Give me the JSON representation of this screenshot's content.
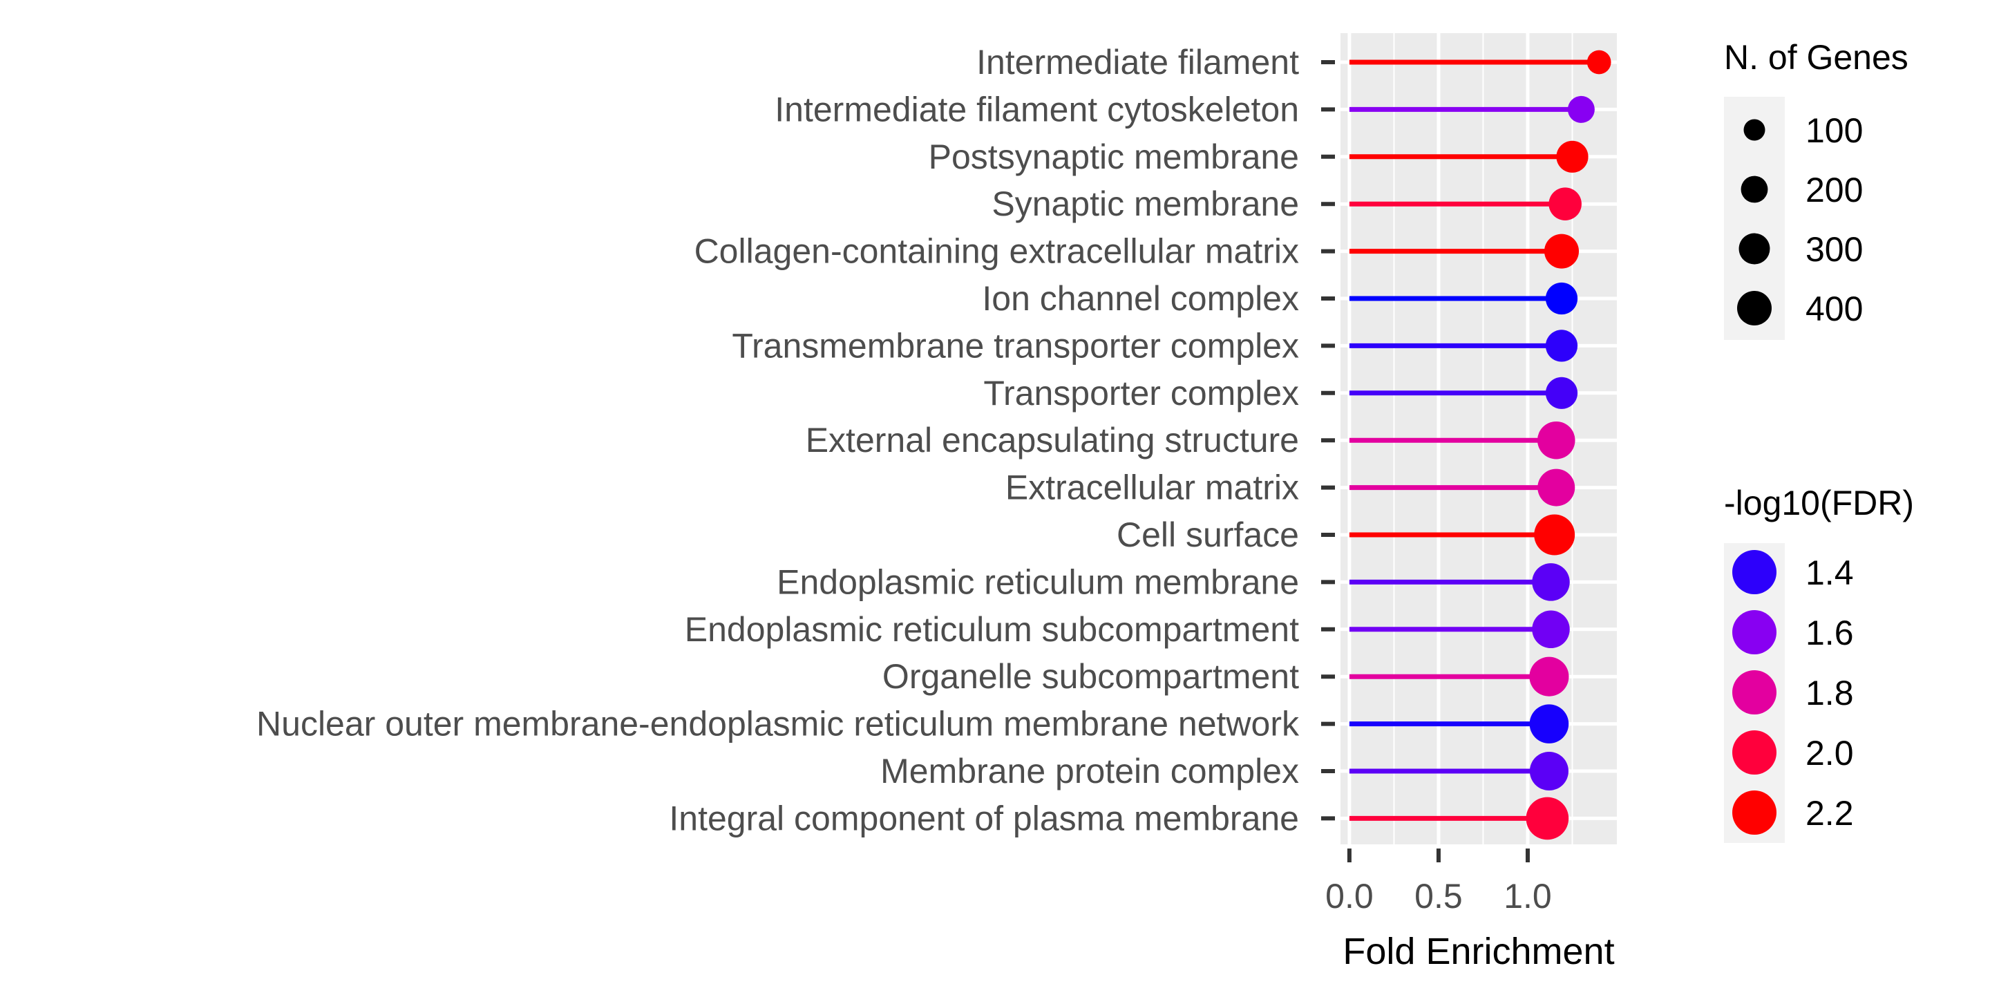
{
  "chart_data": {
    "type": "lollipop",
    "xlabel": "Fold Enrichment",
    "ylabel": "",
    "xlim": [
      -0.05,
      1.5
    ],
    "xticks": [
      0.0,
      0.5,
      1.0
    ],
    "xtick_labels": [
      "0.0",
      "0.5",
      "1.0"
    ],
    "grid": true,
    "categories": [
      "Intermediate filament",
      "Intermediate filament cytoskeleton",
      "Postsynaptic membrane",
      "Synaptic membrane",
      "Collagen-containing extracellular matrix",
      "Ion channel complex",
      "Transmembrane transporter complex",
      "Transporter complex",
      "External encapsulating structure",
      "Extracellular matrix",
      "Cell surface",
      "Endoplasmic reticulum membrane",
      "Endoplasmic reticulum subcompartment",
      "Organelle subcompartment",
      "Nuclear outer membrane-endoplasmic reticulum membrane network",
      "Membrane protein complex",
      "Integral component of plasma membrane"
    ],
    "fold_enrichment": [
      1.4,
      1.3,
      1.25,
      1.21,
      1.19,
      1.19,
      1.19,
      1.19,
      1.16,
      1.16,
      1.15,
      1.13,
      1.13,
      1.12,
      1.12,
      1.12,
      1.11
    ],
    "neg_log10_fdr": [
      2.2,
      1.6,
      2.2,
      2.0,
      2.2,
      1.3,
      1.4,
      1.45,
      1.8,
      1.8,
      2.2,
      1.5,
      1.55,
      1.8,
      1.35,
      1.5,
      2.0
    ],
    "n_genes": [
      60,
      100,
      190,
      210,
      250,
      190,
      190,
      190,
      330,
      320,
      420,
      330,
      330,
      380,
      370,
      360,
      480
    ],
    "legend_size": {
      "title": "N. of Genes",
      "values": [
        100,
        200,
        300,
        400
      ],
      "labels": [
        "100",
        "200",
        "300",
        "400"
      ]
    },
    "legend_color": {
      "title": "-log10(FDR)",
      "values": [
        1.4,
        1.6,
        1.8,
        2.0,
        2.2
      ],
      "labels": [
        "1.4",
        "1.6",
        "1.8",
        "2.0",
        "2.2"
      ],
      "low_color": "#0000ff",
      "high_color": "#ff0000"
    },
    "legend_placement": "right",
    "panel_color": "#ebebeb",
    "grid_color": "#ffffff"
  }
}
